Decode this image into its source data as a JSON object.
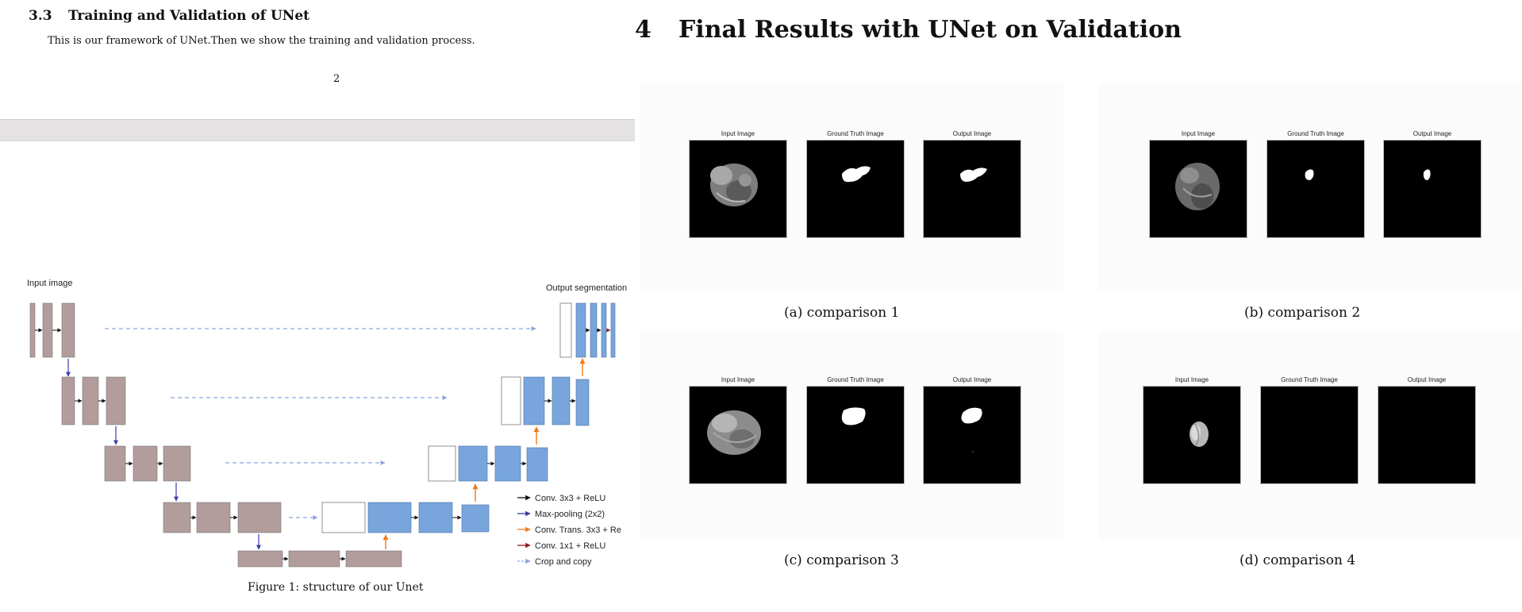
{
  "left_page": {
    "section_number": "3.3",
    "section_title": "Training and Validation of UNet",
    "body_text": "This is our framework of UNet.Then we show the training and validation process.",
    "page_number": "2"
  },
  "unet_figure": {
    "input_label": "Input image",
    "output_label": "Output segmentation",
    "legend": [
      {
        "label": "Conv. 3x3 + ReLU",
        "color": "#111111"
      },
      {
        "label": "Max-pooling (2x2)",
        "color": "#3b3ba8"
      },
      {
        "label": "Conv. Trans. 3x3 + Re",
        "color": "#f07a1a"
      },
      {
        "label": "Conv. 1x1 + ReLU",
        "color": "#9b1b1b"
      },
      {
        "label": "Crop and copy",
        "color": "#8aa4e0"
      }
    ],
    "caption": "Figure 1: structure of our Unet",
    "colors": {
      "encoder": "#b29c9c",
      "decoder": "#78a6dc",
      "skip": "#ffffff"
    }
  },
  "right_page": {
    "section_number": "4",
    "section_title": "Final Results with UNet on Validation",
    "column_labels": [
      "Input Image",
      "Ground Truth Image",
      "Output Image"
    ],
    "panels": [
      {
        "caption": "(a) comparison 1"
      },
      {
        "caption": "(b) comparison 2"
      },
      {
        "caption": "(c) comparison 3"
      },
      {
        "caption": "(d) comparison 4"
      }
    ]
  }
}
